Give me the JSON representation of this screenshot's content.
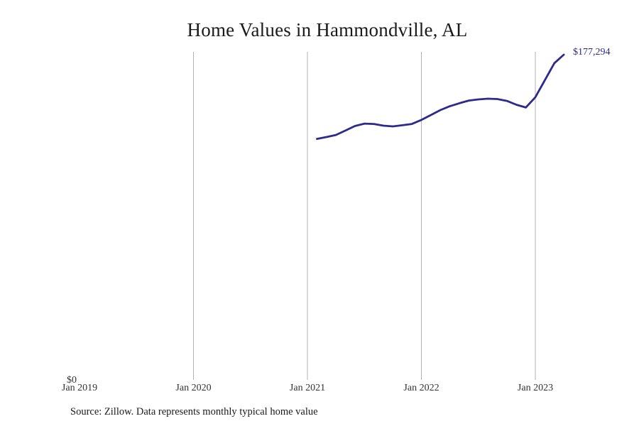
{
  "chart": {
    "title": "Home Values in Hammondville, AL",
    "source": "Source: Zillow. Data represents monthly typical home value",
    "end_label": "$177,294",
    "y_zero_label": "$0",
    "x_ticks": [
      "Jan 2019",
      "Jan 2020",
      "Jan 2021",
      "Jan 2022",
      "Jan 2023"
    ],
    "colors": {
      "line": "#2e2a8c",
      "gridline": "#b3b3b3",
      "end_label": "#2e2a8c",
      "text": "#333333"
    }
  },
  "chart_data": {
    "type": "line",
    "title": "Home Values in Hammondville, AL",
    "xlabel": "",
    "ylabel": "",
    "x_tick_labels": [
      "Jan 2019",
      "Jan 2020",
      "Jan 2021",
      "Jan 2022",
      "Jan 2023"
    ],
    "y_tick_labels": [
      "$0"
    ],
    "ylim": [
      0,
      177294
    ],
    "xlim": [
      "2019-01",
      "2023-06"
    ],
    "grid": {
      "vertical": true,
      "horizontal": false
    },
    "legend": null,
    "annotations": [
      {
        "text": "$177,294",
        "at": "2023-04",
        "position": "end-of-line"
      }
    ],
    "series": [
      {
        "name": "Typical home value",
        "x": [
          "2021-02",
          "2021-03",
          "2021-04",
          "2021-05",
          "2021-06",
          "2021-07",
          "2021-08",
          "2021-09",
          "2021-10",
          "2021-11",
          "2021-12",
          "2022-01",
          "2022-02",
          "2022-03",
          "2022-04",
          "2022-05",
          "2022-06",
          "2022-07",
          "2022-08",
          "2022-09",
          "2022-10",
          "2022-11",
          "2022-12",
          "2023-01",
          "2023-02",
          "2023-03",
          "2023-04"
        ],
        "values": [
          131400,
          132400,
          133500,
          135900,
          138400,
          139700,
          139500,
          138600,
          138200,
          138800,
          139500,
          141700,
          144400,
          147100,
          149200,
          150800,
          152300,
          152900,
          153300,
          153100,
          152100,
          150000,
          148500,
          154100,
          163400,
          172700,
          177294
        ]
      }
    ],
    "source": "Source: Zillow. Data represents monthly typical home value"
  }
}
